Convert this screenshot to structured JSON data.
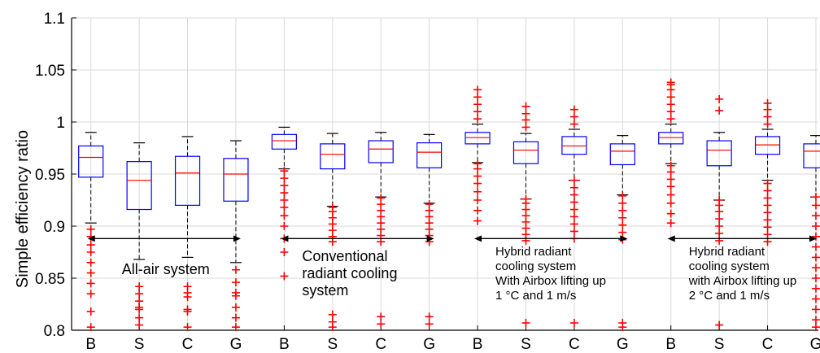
{
  "chart_data": {
    "type": "box",
    "ylabel": "Simple efficiency ratio",
    "ylim": [
      0.8,
      1.1
    ],
    "yticks": [
      "0.8",
      "0.85",
      "0.9",
      "0.95",
      "1",
      "1.05",
      "1.1"
    ],
    "grid": true,
    "categories": [
      "B",
      "S",
      "C",
      "G",
      "B",
      "S",
      "C",
      "G",
      "B",
      "S",
      "C",
      "G",
      "B",
      "S",
      "C",
      "G"
    ],
    "groups": [
      {
        "lines": [
          "All-air system"
        ],
        "from_index": 0,
        "to_index": 3
      },
      {
        "lines": [
          "Conventional",
          "radiant cooling",
          "system"
        ],
        "from_index": 4,
        "to_index": 7
      },
      {
        "lines": [
          "Hybrid radiant",
          "cooling system",
          "With Airbox lifting up",
          "1 °C and 1 m/s"
        ],
        "from_index": 8,
        "to_index": 11
      },
      {
        "lines": [
          "Hybrid radiant",
          "cooling system",
          "with Airbox lifting up",
          "2 °C and 1 m/s"
        ],
        "from_index": 12,
        "to_index": 15
      }
    ],
    "boxes": [
      {
        "whisker_low": 0.903,
        "q1": 0.947,
        "median": 0.966,
        "q3": 0.977,
        "whisker_high": 0.99,
        "outliers_low": [
          0.803,
          0.818,
          0.835,
          0.845,
          0.855,
          0.865,
          0.875,
          0.882,
          0.89,
          0.897
        ],
        "outliers_high": []
      },
      {
        "whisker_low": 0.868,
        "q1": 0.916,
        "median": 0.944,
        "q3": 0.962,
        "whisker_high": 0.98,
        "outliers_low": [
          0.805,
          0.812,
          0.82,
          0.822,
          0.828,
          0.835,
          0.842
        ],
        "outliers_high": []
      },
      {
        "whisker_low": 0.87,
        "q1": 0.92,
        "median": 0.951,
        "q3": 0.967,
        "whisker_high": 0.986,
        "outliers_low": [
          0.803,
          0.818,
          0.82,
          0.832,
          0.836,
          0.842
        ],
        "outliers_high": []
      },
      {
        "whisker_low": 0.865,
        "q1": 0.924,
        "median": 0.95,
        "q3": 0.965,
        "whisker_high": 0.982,
        "outliers_low": [
          0.803,
          0.812,
          0.822,
          0.833,
          0.836,
          0.846,
          0.858
        ],
        "outliers_high": []
      },
      {
        "whisker_low": 0.955,
        "q1": 0.974,
        "median": 0.982,
        "q3": 0.988,
        "whisker_high": 0.995,
        "outliers_low": [
          0.852,
          0.875,
          0.888,
          0.9,
          0.91,
          0.918,
          0.925,
          0.932,
          0.939,
          0.946,
          0.953
        ],
        "outliers_high": []
      },
      {
        "whisker_low": 0.919,
        "q1": 0.955,
        "median": 0.969,
        "q3": 0.979,
        "whisker_high": 0.989,
        "outliers_low": [
          0.803,
          0.808,
          0.815,
          0.885,
          0.89,
          0.896,
          0.902,
          0.908,
          0.914,
          0.918
        ],
        "outliers_high": []
      },
      {
        "whisker_low": 0.928,
        "q1": 0.961,
        "median": 0.974,
        "q3": 0.982,
        "whisker_high": 0.99,
        "outliers_low": [
          0.806,
          0.813,
          0.885,
          0.891,
          0.897,
          0.903,
          0.909,
          0.915,
          0.921,
          0.927
        ],
        "outliers_high": []
      },
      {
        "whisker_low": 0.922,
        "q1": 0.956,
        "median": 0.971,
        "q3": 0.98,
        "whisker_high": 0.988,
        "outliers_low": [
          0.806,
          0.813,
          0.885,
          0.891,
          0.897,
          0.903,
          0.909,
          0.915,
          0.921
        ],
        "outliers_high": []
      },
      {
        "whisker_low": 0.961,
        "q1": 0.979,
        "median": 0.985,
        "q3": 0.99,
        "whisker_high": 0.998,
        "outliers_low": [
          0.905,
          0.915,
          0.925,
          0.933,
          0.941,
          0.948,
          0.955,
          0.96
        ],
        "outliers_high": [
          1.003,
          1.01,
          1.017,
          1.024,
          1.031
        ]
      },
      {
        "whisker_low": 0.926,
        "q1": 0.96,
        "median": 0.973,
        "q3": 0.981,
        "whisker_high": 0.989,
        "outliers_low": [
          0.807,
          0.886,
          0.892,
          0.898,
          0.904,
          0.91,
          0.916,
          0.922,
          0.926
        ],
        "outliers_high": [
          0.995,
          1.002,
          1.008,
          1.015
        ]
      },
      {
        "whisker_low": 0.944,
        "q1": 0.969,
        "median": 0.977,
        "q3": 0.986,
        "whisker_high": 0.993,
        "outliers_low": [
          0.807,
          0.888,
          0.895,
          0.902,
          0.909,
          0.916,
          0.923,
          0.93,
          0.937,
          0.944
        ],
        "outliers_high": [
          0.998,
          1.005,
          1.012
        ]
      },
      {
        "whisker_low": 0.93,
        "q1": 0.959,
        "median": 0.972,
        "q3": 0.979,
        "whisker_high": 0.987,
        "outliers_low": [
          0.803,
          0.807,
          0.887,
          0.894,
          0.901,
          0.908,
          0.915,
          0.922,
          0.929
        ],
        "outliers_high": []
      },
      {
        "whisker_low": 0.96,
        "q1": 0.979,
        "median": 0.985,
        "q3": 0.99,
        "whisker_high": 0.998,
        "outliers_low": [
          0.903,
          0.912,
          0.922,
          0.93,
          0.938,
          0.945,
          0.952,
          0.958
        ],
        "outliers_high": [
          1.003,
          1.01,
          1.017,
          1.024,
          1.031,
          1.036,
          1.038
        ]
      },
      {
        "whisker_low": 0.925,
        "q1": 0.958,
        "median": 0.973,
        "q3": 0.982,
        "whisker_high": 0.99,
        "outliers_low": [
          0.805,
          0.886,
          0.893,
          0.9,
          0.907,
          0.914,
          0.92,
          0.925
        ],
        "outliers_high": [
          1.011,
          1.022
        ]
      },
      {
        "whisker_low": 0.944,
        "q1": 0.969,
        "median": 0.978,
        "q3": 0.986,
        "whisker_high": 0.993,
        "outliers_low": [
          0.885,
          0.892,
          0.899,
          0.906,
          0.913,
          0.92,
          0.927,
          0.934,
          0.941
        ],
        "outliers_high": [
          0.998,
          1.005,
          1.012,
          1.018
        ]
      },
      {
        "whisker_low": 0.928,
        "q1": 0.956,
        "median": 0.972,
        "q3": 0.979,
        "whisker_high": 0.987,
        "outliers_low": [
          0.803,
          0.81,
          0.82,
          0.83,
          0.84,
          0.85,
          0.86,
          0.87,
          0.88,
          0.89,
          0.9,
          0.91,
          0.92,
          0.928
        ],
        "outliers_high": []
      }
    ],
    "colors": {
      "box": "#0000ff",
      "median": "#ff0000",
      "outlier": "#ff0000",
      "whisker": "#000000",
      "grid": "#d9d9d9",
      "arrow": "#000000"
    }
  }
}
